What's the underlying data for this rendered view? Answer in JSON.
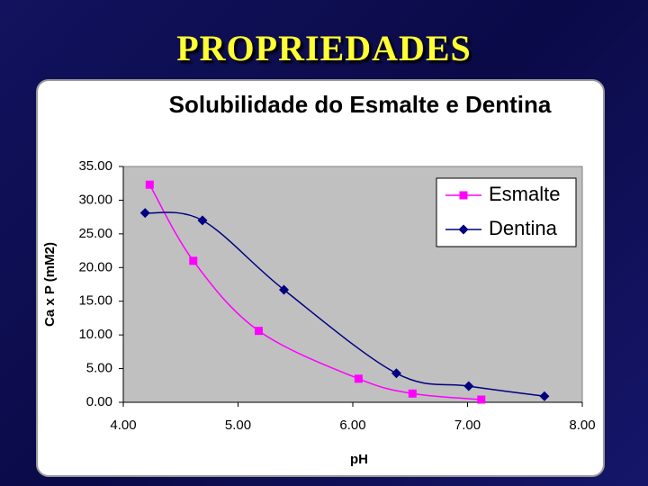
{
  "slide_title": "PROPRIEDADES",
  "chart_data": {
    "type": "line",
    "title": "Solubilidade do Esmalte e Dentina",
    "x_label": "pH",
    "y_label": "Ca x P (mM2)",
    "xlim": [
      4,
      8
    ],
    "xticks": [
      {
        "value": 4,
        "label": "4.00"
      },
      {
        "value": 5,
        "label": "5.00"
      },
      {
        "value": 6,
        "label": "6.00"
      },
      {
        "value": 7,
        "label": "7.00"
      },
      {
        "value": 8,
        "label": "8.00"
      }
    ],
    "ylim": [
      0,
      35
    ],
    "yticks": [
      {
        "value": 0,
        "label": "0.00"
      },
      {
        "value": 5,
        "label": "5.00"
      },
      {
        "value": 10,
        "label": "10.00"
      },
      {
        "value": 15,
        "label": "15.00"
      },
      {
        "value": 20,
        "label": "20.00"
      },
      {
        "value": 25,
        "label": "25.00"
      },
      {
        "value": 30,
        "label": "30.00"
      },
      {
        "value": 35,
        "label": "35.00"
      }
    ],
    "legend": "upper right",
    "series": [
      {
        "name": "Esmalte",
        "color": "#ff00ff",
        "marker": "square",
        "x": [
          4.23,
          4.61,
          5.18,
          6.05,
          6.52,
          7.12
        ],
        "values": [
          32.3,
          21.0,
          10.6,
          3.5,
          1.3,
          0.4
        ]
      },
      {
        "name": "Dentina",
        "color": "#000080",
        "marker": "diamond",
        "x": [
          4.19,
          4.69,
          5.4,
          6.38,
          7.01,
          7.67
        ],
        "values": [
          28.1,
          27.0,
          16.7,
          4.3,
          2.4,
          0.9
        ]
      }
    ]
  }
}
